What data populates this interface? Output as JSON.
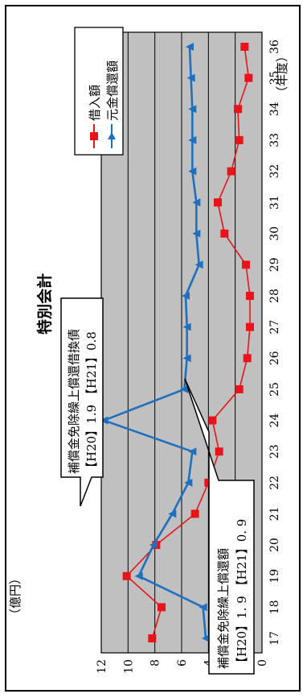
{
  "chart_data": {
    "type": "line",
    "title": "特別会計",
    "ylabel": "（億円）",
    "xlabel": "（年度）",
    "ylim": [
      0,
      12
    ],
    "yticks": [
      "0",
      "2",
      "4",
      "6",
      "8",
      "10",
      "12"
    ],
    "grid": true,
    "legend_position": "top-right",
    "categories": [
      "17",
      "18",
      "19",
      "20",
      "21",
      "22",
      "23",
      "24",
      "25",
      "26",
      "27",
      "28",
      "29",
      "30",
      "31",
      "32",
      "33",
      "34",
      "35",
      "36"
    ],
    "series": [
      {
        "name": "借入額",
        "color": "#e8141a",
        "marker": "square",
        "values": [
          8.2,
          7.5,
          10.1,
          7.9,
          5.0,
          4.0,
          3.2,
          3.7,
          1.7,
          1.1,
          0.9,
          0.9,
          1.2,
          2.8,
          3.3,
          2.3,
          1.7,
          1.8,
          1.0,
          1.3
        ]
      },
      {
        "name": "元金償還額",
        "color": "#1f6fbf",
        "marker": "triangle",
        "values": [
          4.2,
          4.4,
          9.2,
          8.1,
          6.7,
          5.5,
          5.2,
          11.8,
          5.8,
          5.6,
          5.6,
          5.7,
          4.7,
          4.9,
          4.9,
          5.2,
          5.2,
          5.2,
          5.3,
          5.4
        ]
      }
    ],
    "annotations": [
      {
        "id": "callout_top",
        "lines": [
          "補償金免除繰上償還借換債",
          "【H20】1.9 【H21】0.8"
        ]
      },
      {
        "id": "callout_bottom",
        "lines": [
          "補償金免除繰上償還額",
          "【H20】1. 9 【H21】0. 9"
        ]
      }
    ]
  }
}
